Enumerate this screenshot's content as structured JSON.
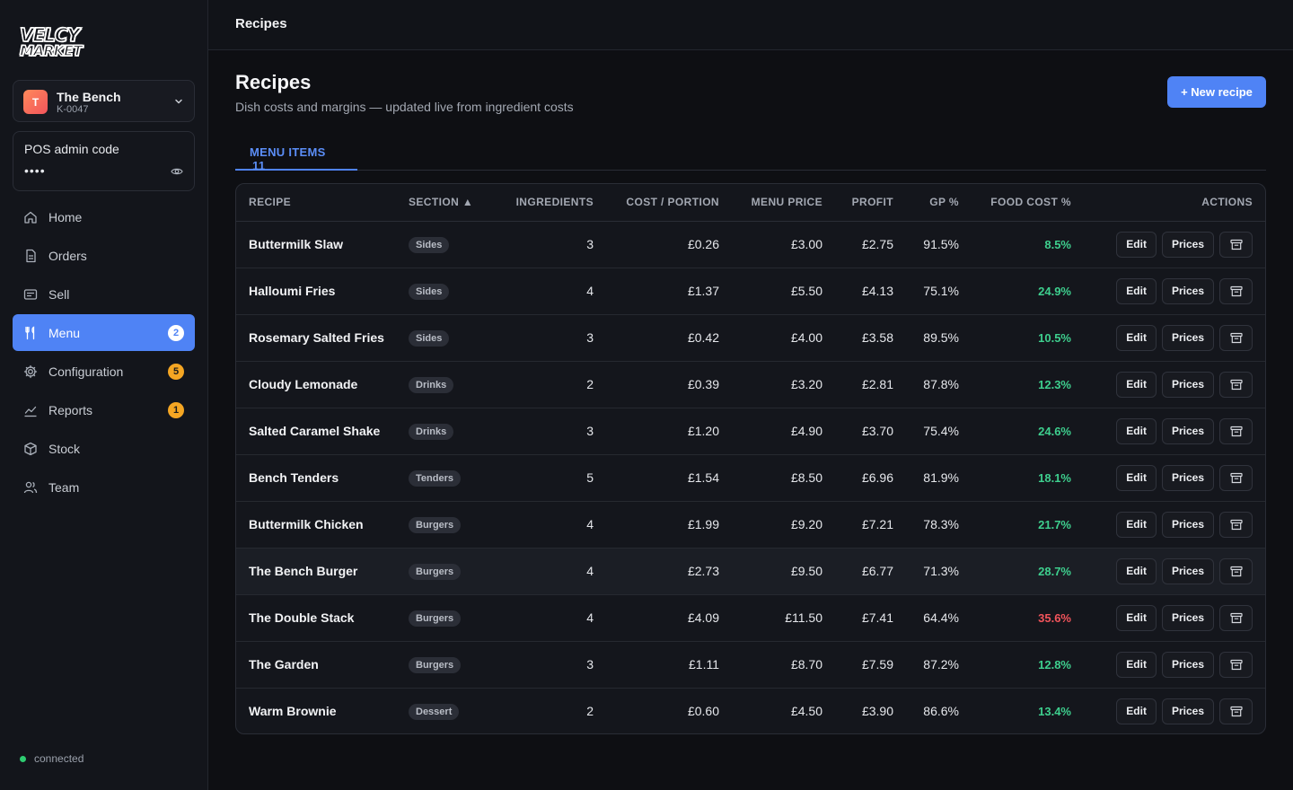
{
  "sidebar": {
    "logo_line1": "VELCY",
    "logo_line2": "MARKET",
    "venue": {
      "initial": "T",
      "name": "The Bench",
      "code": "K-0047"
    },
    "pos": {
      "label": "POS admin code",
      "masked": "••••"
    },
    "items": [
      {
        "label": "Home",
        "icon": "home-icon",
        "badge": null,
        "active": false
      },
      {
        "label": "Orders",
        "icon": "document-icon",
        "badge": null,
        "active": false
      },
      {
        "label": "Sell",
        "icon": "register-icon",
        "badge": null,
        "active": false
      },
      {
        "label": "Menu",
        "icon": "cutlery-icon",
        "badge": "2",
        "active": true
      },
      {
        "label": "Configuration",
        "icon": "gear-icon",
        "badge": "5",
        "active": false
      },
      {
        "label": "Reports",
        "icon": "chart-icon",
        "badge": "1",
        "active": false
      },
      {
        "label": "Stock",
        "icon": "box-icon",
        "badge": null,
        "active": false
      },
      {
        "label": "Team",
        "icon": "users-icon",
        "badge": null,
        "active": false
      }
    ],
    "status": "connected"
  },
  "topbar": {
    "title": "Recipes"
  },
  "main": {
    "title": "Recipes",
    "subtitle": "Dish costs and margins — updated live from ingredient costs",
    "new_button": "+ New recipe",
    "tab": {
      "label": "MENU ITEMS",
      "count": "11"
    }
  },
  "table": {
    "headers": {
      "recipe": "RECIPE",
      "section": "SECTION ▲",
      "ingredients": "INGREDIENTS",
      "cost": "COST / PORTION",
      "price": "MENU PRICE",
      "profit": "PROFIT",
      "gp": "GP %",
      "food_cost": "FOOD COST %",
      "actions": "ACTIONS"
    },
    "action_labels": {
      "edit": "Edit",
      "prices": "Prices"
    },
    "rows": [
      {
        "recipe": "Buttermilk Slaw",
        "section": "Sides",
        "ingredients": "3",
        "cost": "£0.26",
        "price": "£3.00",
        "profit": "£2.75",
        "gp": "91.5%",
        "food_cost": "8.5%"
      },
      {
        "recipe": "Halloumi Fries",
        "section": "Sides",
        "ingredients": "4",
        "cost": "£1.37",
        "price": "£5.50",
        "profit": "£4.13",
        "gp": "75.1%",
        "food_cost": "24.9%"
      },
      {
        "recipe": "Rosemary Salted Fries",
        "section": "Sides",
        "ingredients": "3",
        "cost": "£0.42",
        "price": "£4.00",
        "profit": "£3.58",
        "gp": "89.5%",
        "food_cost": "10.5%"
      },
      {
        "recipe": "Cloudy Lemonade",
        "section": "Drinks",
        "ingredients": "2",
        "cost": "£0.39",
        "price": "£3.20",
        "profit": "£2.81",
        "gp": "87.8%",
        "food_cost": "12.3%"
      },
      {
        "recipe": "Salted Caramel Shake",
        "section": "Drinks",
        "ingredients": "3",
        "cost": "£1.20",
        "price": "£4.90",
        "profit": "£3.70",
        "gp": "75.4%",
        "food_cost": "24.6%"
      },
      {
        "recipe": "Bench Tenders",
        "section": "Tenders",
        "ingredients": "5",
        "cost": "£1.54",
        "price": "£8.50",
        "profit": "£6.96",
        "gp": "81.9%",
        "food_cost": "18.1%"
      },
      {
        "recipe": "Buttermilk Chicken",
        "section": "Burgers",
        "ingredients": "4",
        "cost": "£1.99",
        "price": "£9.20",
        "profit": "£7.21",
        "gp": "78.3%",
        "food_cost": "21.7%"
      },
      {
        "recipe": "The Bench Burger",
        "section": "Burgers",
        "ingredients": "4",
        "cost": "£2.73",
        "price": "£9.50",
        "profit": "£6.77",
        "gp": "71.3%",
        "food_cost": "28.7%"
      },
      {
        "recipe": "The Double Stack",
        "section": "Burgers",
        "ingredients": "4",
        "cost": "£4.09",
        "price": "£11.50",
        "profit": "£7.41",
        "gp": "64.4%",
        "food_cost": "35.6%"
      },
      {
        "recipe": "The Garden",
        "section": "Burgers",
        "ingredients": "3",
        "cost": "£1.11",
        "price": "£8.70",
        "profit": "£7.59",
        "gp": "87.2%",
        "food_cost": "12.8%"
      },
      {
        "recipe": "Warm Brownie",
        "section": "Dessert",
        "ingredients": "2",
        "cost": "£0.60",
        "price": "£4.50",
        "profit": "£3.90",
        "gp": "86.6%",
        "food_cost": "13.4%"
      }
    ]
  },
  "colors": {
    "accent": "#4f83f5",
    "good": "#3ecf8e",
    "bad": "#f2545b",
    "badge": "#f5a623"
  }
}
